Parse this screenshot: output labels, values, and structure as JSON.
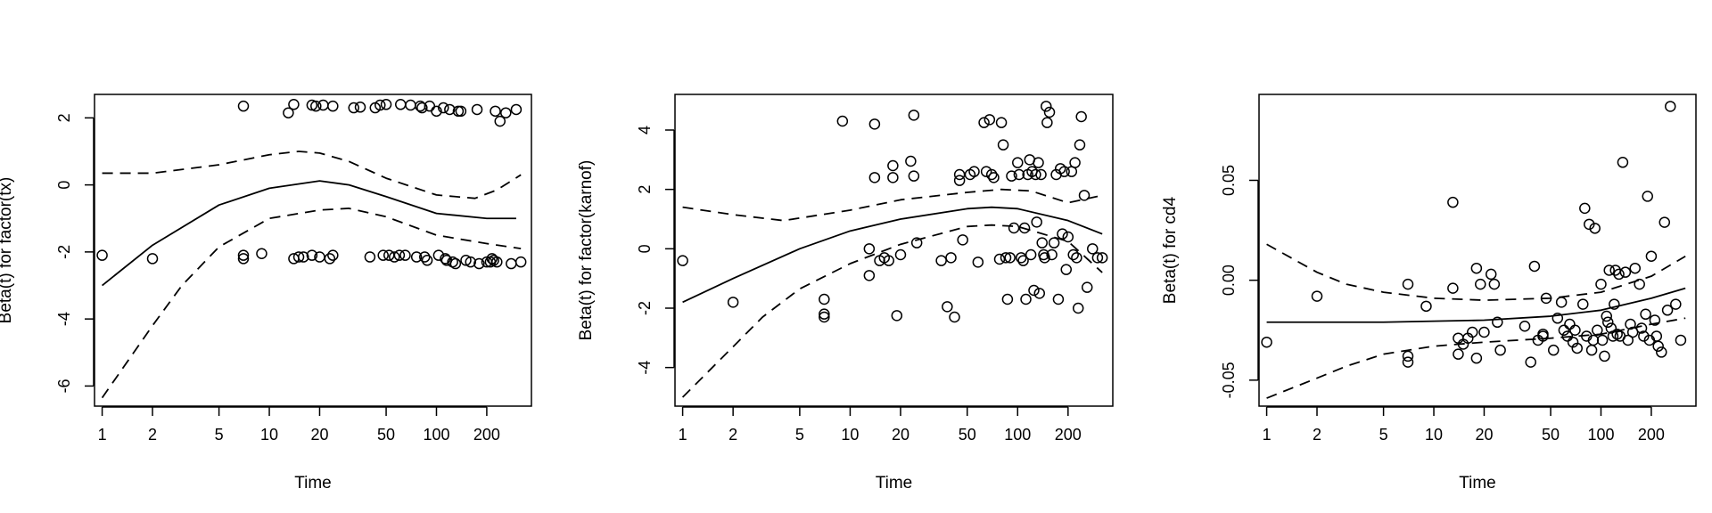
{
  "chart_data": [
    {
      "type": "scatter",
      "title": "",
      "xlabel": "Time",
      "ylabel": "Beta(t) for factor(tx)",
      "xscale": "log",
      "xlim": [
        0.9,
        370
      ],
      "ylim": [
        -6.6,
        2.7
      ],
      "xticks": [
        1,
        2,
        5,
        10,
        20,
        50,
        100,
        200
      ],
      "xtick_labels": [
        "1",
        "2",
        "5",
        "10",
        "20",
        "50",
        "100",
        "200"
      ],
      "yticks": [
        -6,
        -4,
        -2,
        0,
        2
      ],
      "ytick_labels": [
        "-6",
        "-4",
        "-2",
        "0",
        "2"
      ],
      "grid": false,
      "series": [
        {
          "kind": "points",
          "x": [
            1,
            2,
            7,
            7,
            7,
            9,
            13,
            14,
            14,
            15,
            16,
            18,
            18,
            19,
            20,
            21,
            23,
            24,
            24,
            32,
            35,
            40,
            43,
            46,
            48,
            50,
            52,
            56,
            60,
            61,
            65,
            70,
            76,
            80,
            82,
            85,
            88,
            91,
            100,
            103,
            110,
            113,
            115,
            120,
            125,
            130,
            135,
            140,
            150,
            160,
            175,
            180,
            200,
            210,
            215,
            220,
            225,
            230,
            240,
            260,
            280,
            300,
            320
          ],
          "y": [
            -2.1,
            -2.2,
            2.35,
            -2.1,
            -2.2,
            -2.05,
            2.15,
            -2.2,
            2.4,
            -2.15,
            -2.15,
            2.38,
            -2.1,
            2.35,
            -2.15,
            2.38,
            -2.2,
            2.35,
            -2.1,
            2.3,
            2.32,
            -2.15,
            2.3,
            2.38,
            -2.1,
            2.4,
            -2.1,
            -2.15,
            -2.1,
            2.4,
            -2.1,
            2.38,
            -2.15,
            2.35,
            2.3,
            -2.15,
            -2.25,
            2.35,
            2.2,
            -2.1,
            2.3,
            -2.2,
            -2.25,
            2.25,
            -2.3,
            -2.35,
            2.2,
            2.2,
            -2.25,
            -2.3,
            2.25,
            -2.35,
            -2.3,
            -2.3,
            -2.2,
            -2.25,
            2.2,
            -2.3,
            1.9,
            2.15,
            -2.35,
            2.25,
            -2.3
          ]
        },
        {
          "kind": "solid",
          "x": [
            1,
            2,
            5,
            10,
            20,
            30,
            50,
            100,
            200,
            300
          ],
          "y": [
            -3.0,
            -1.8,
            -0.6,
            -0.1,
            0.12,
            0.0,
            -0.35,
            -0.85,
            -1.0,
            -1.0
          ]
        },
        {
          "kind": "dashed",
          "x": [
            1,
            2,
            5,
            10,
            15,
            20,
            30,
            50,
            100,
            170,
            230,
            320
          ],
          "y": [
            0.35,
            0.35,
            0.6,
            0.9,
            1.0,
            0.95,
            0.7,
            0.2,
            -0.3,
            -0.4,
            -0.15,
            0.3
          ]
        },
        {
          "kind": "dashed",
          "x": [
            1,
            2,
            3,
            5,
            10,
            20,
            30,
            50,
            100,
            200,
            320
          ],
          "y": [
            -6.35,
            -4.2,
            -3.0,
            -1.85,
            -1.0,
            -0.75,
            -0.7,
            -0.95,
            -1.5,
            -1.75,
            -1.9
          ]
        }
      ]
    },
    {
      "type": "scatter",
      "title": "",
      "xlabel": "Time",
      "ylabel": "Beta(t) for factor(karnof)",
      "xscale": "log",
      "xlim": [
        0.9,
        370
      ],
      "ylim": [
        -5.3,
        5.2
      ],
      "xticks": [
        1,
        2,
        5,
        10,
        20,
        50,
        100,
        200
      ],
      "xtick_labels": [
        "1",
        "2",
        "5",
        "10",
        "20",
        "50",
        "100",
        "200"
      ],
      "yticks": [
        -4,
        -2,
        0,
        2,
        4
      ],
      "ytick_labels": [
        "-4",
        "-2",
        "0",
        "2",
        "4"
      ],
      "grid": false,
      "series": [
        {
          "kind": "points",
          "x": [
            1,
            2,
            7,
            7,
            7,
            9,
            13,
            13,
            14,
            14,
            15,
            16,
            17,
            18,
            18,
            19,
            20,
            23,
            24,
            24,
            25,
            35,
            38,
            40,
            42,
            45,
            45,
            47,
            52,
            55,
            58,
            63,
            65,
            68,
            70,
            72,
            78,
            80,
            82,
            85,
            87,
            90,
            92,
            95,
            100,
            102,
            105,
            108,
            110,
            112,
            115,
            118,
            120,
            122,
            125,
            128,
            130,
            133,
            135,
            138,
            140,
            143,
            145,
            148,
            150,
            155,
            160,
            165,
            170,
            175,
            180,
            185,
            190,
            195,
            200,
            210,
            215,
            220,
            225,
            230,
            235,
            240,
            250,
            260,
            280,
            300,
            320
          ],
          "y": [
            -0.4,
            -1.8,
            -1.7,
            -2.2,
            -2.3,
            4.3,
            -0.9,
            0.0,
            4.2,
            2.4,
            -0.4,
            -0.3,
            -0.4,
            2.4,
            2.8,
            -2.25,
            -0.2,
            2.95,
            2.45,
            4.5,
            0.2,
            -0.4,
            -1.95,
            -0.3,
            -2.3,
            2.5,
            2.3,
            0.3,
            2.5,
            2.6,
            -0.45,
            4.25,
            2.6,
            4.35,
            2.5,
            2.4,
            -0.35,
            4.25,
            3.5,
            -0.3,
            -1.7,
            -0.3,
            2.45,
            0.7,
            2.9,
            2.5,
            -0.3,
            -0.4,
            0.7,
            -1.7,
            2.5,
            3.0,
            -0.2,
            2.6,
            -1.4,
            2.5,
            0.9,
            2.9,
            -1.5,
            2.5,
            0.2,
            -0.2,
            -0.3,
            4.8,
            4.25,
            4.6,
            -0.2,
            0.2,
            2.5,
            -1.7,
            2.7,
            0.5,
            2.6,
            -0.7,
            0.4,
            2.6,
            -0.2,
            2.9,
            -0.3,
            -2.0,
            3.5,
            4.45,
            1.8,
            -1.3,
            0.0,
            -0.3,
            -0.3
          ]
        },
        {
          "kind": "solid",
          "x": [
            1,
            2,
            5,
            10,
            20,
            50,
            70,
            100,
            200,
            320
          ],
          "y": [
            -1.8,
            -1.0,
            0.0,
            0.6,
            1.0,
            1.35,
            1.4,
            1.35,
            0.95,
            0.5
          ]
        },
        {
          "kind": "dashed",
          "x": [
            1,
            2,
            4,
            10,
            20,
            50,
            80,
            120,
            200,
            320
          ],
          "y": [
            1.4,
            1.15,
            0.95,
            1.3,
            1.65,
            1.9,
            2.0,
            1.95,
            1.55,
            1.8
          ]
        },
        {
          "kind": "dashed",
          "x": [
            1,
            2,
            3,
            5,
            10,
            20,
            50,
            70,
            100,
            200,
            320
          ],
          "y": [
            -5.0,
            -3.3,
            -2.3,
            -1.35,
            -0.5,
            0.15,
            0.75,
            0.8,
            0.75,
            0.25,
            -0.8
          ]
        }
      ]
    },
    {
      "type": "scatter",
      "title": "",
      "xlabel": "Time",
      "ylabel": "Beta(t) for cd4",
      "xscale": "log",
      "xlim": [
        0.9,
        370
      ],
      "ylim": [
        -0.063,
        0.093
      ],
      "xticks": [
        1,
        2,
        5,
        10,
        20,
        50,
        100,
        200
      ],
      "xtick_labels": [
        "1",
        "2",
        "5",
        "10",
        "20",
        "50",
        "100",
        "200"
      ],
      "yticks": [
        -0.05,
        0.0,
        0.05
      ],
      "ytick_labels": [
        "-0.05",
        "0.00",
        "0.05"
      ],
      "grid": false,
      "series": [
        {
          "kind": "points",
          "x": [
            1,
            2,
            7,
            7,
            7,
            9,
            13,
            13,
            14,
            14,
            15,
            16,
            17,
            18,
            18,
            19,
            20,
            22,
            23,
            24,
            25,
            35,
            38,
            40,
            42,
            45,
            45,
            47,
            52,
            55,
            58,
            60,
            63,
            65,
            68,
            70,
            72,
            78,
            80,
            82,
            85,
            88,
            90,
            92,
            95,
            100,
            102,
            105,
            108,
            110,
            112,
            115,
            118,
            120,
            122,
            125,
            128,
            130,
            135,
            140,
            145,
            150,
            155,
            160,
            170,
            175,
            180,
            185,
            190,
            195,
            200,
            210,
            215,
            220,
            230,
            240,
            250,
            260,
            280,
            300
          ],
          "y": [
            -0.031,
            -0.008,
            -0.038,
            -0.041,
            -0.002,
            -0.013,
            -0.004,
            0.039,
            -0.037,
            -0.029,
            -0.032,
            -0.029,
            -0.026,
            -0.039,
            0.006,
            -0.002,
            -0.026,
            0.003,
            -0.002,
            -0.021,
            -0.035,
            -0.023,
            -0.041,
            0.007,
            -0.03,
            -0.028,
            -0.027,
            -0.009,
            -0.035,
            -0.019,
            -0.011,
            -0.025,
            -0.028,
            -0.022,
            -0.031,
            -0.025,
            -0.034,
            -0.012,
            0.036,
            -0.028,
            0.028,
            -0.035,
            -0.03,
            0.026,
            -0.025,
            -0.002,
            -0.03,
            -0.038,
            -0.018,
            -0.021,
            0.005,
            -0.024,
            -0.028,
            -0.012,
            0.005,
            -0.027,
            0.003,
            -0.028,
            0.059,
            0.004,
            -0.03,
            -0.022,
            -0.026,
            0.006,
            -0.002,
            -0.024,
            -0.028,
            -0.017,
            0.042,
            -0.03,
            0.012,
            -0.02,
            -0.028,
            -0.033,
            -0.036,
            0.029,
            -0.015,
            0.087,
            -0.012,
            -0.03
          ]
        },
        {
          "kind": "solid",
          "x": [
            1,
            2,
            5,
            10,
            20,
            50,
            100,
            200,
            320
          ],
          "y": [
            -0.021,
            -0.021,
            -0.021,
            -0.0205,
            -0.02,
            -0.018,
            -0.015,
            -0.009,
            -0.004
          ]
        },
        {
          "kind": "dashed",
          "x": [
            1,
            2,
            3,
            5,
            10,
            20,
            50,
            100,
            200,
            320
          ],
          "y": [
            0.018,
            0.004,
            -0.002,
            -0.006,
            -0.009,
            -0.01,
            -0.009,
            -0.006,
            0.002,
            0.012
          ]
        },
        {
          "kind": "dashed",
          "x": [
            1,
            2,
            3,
            5,
            10,
            20,
            50,
            100,
            200,
            320
          ],
          "y": [
            -0.059,
            -0.049,
            -0.043,
            -0.037,
            -0.033,
            -0.031,
            -0.029,
            -0.027,
            -0.022,
            -0.019
          ]
        }
      ]
    }
  ]
}
